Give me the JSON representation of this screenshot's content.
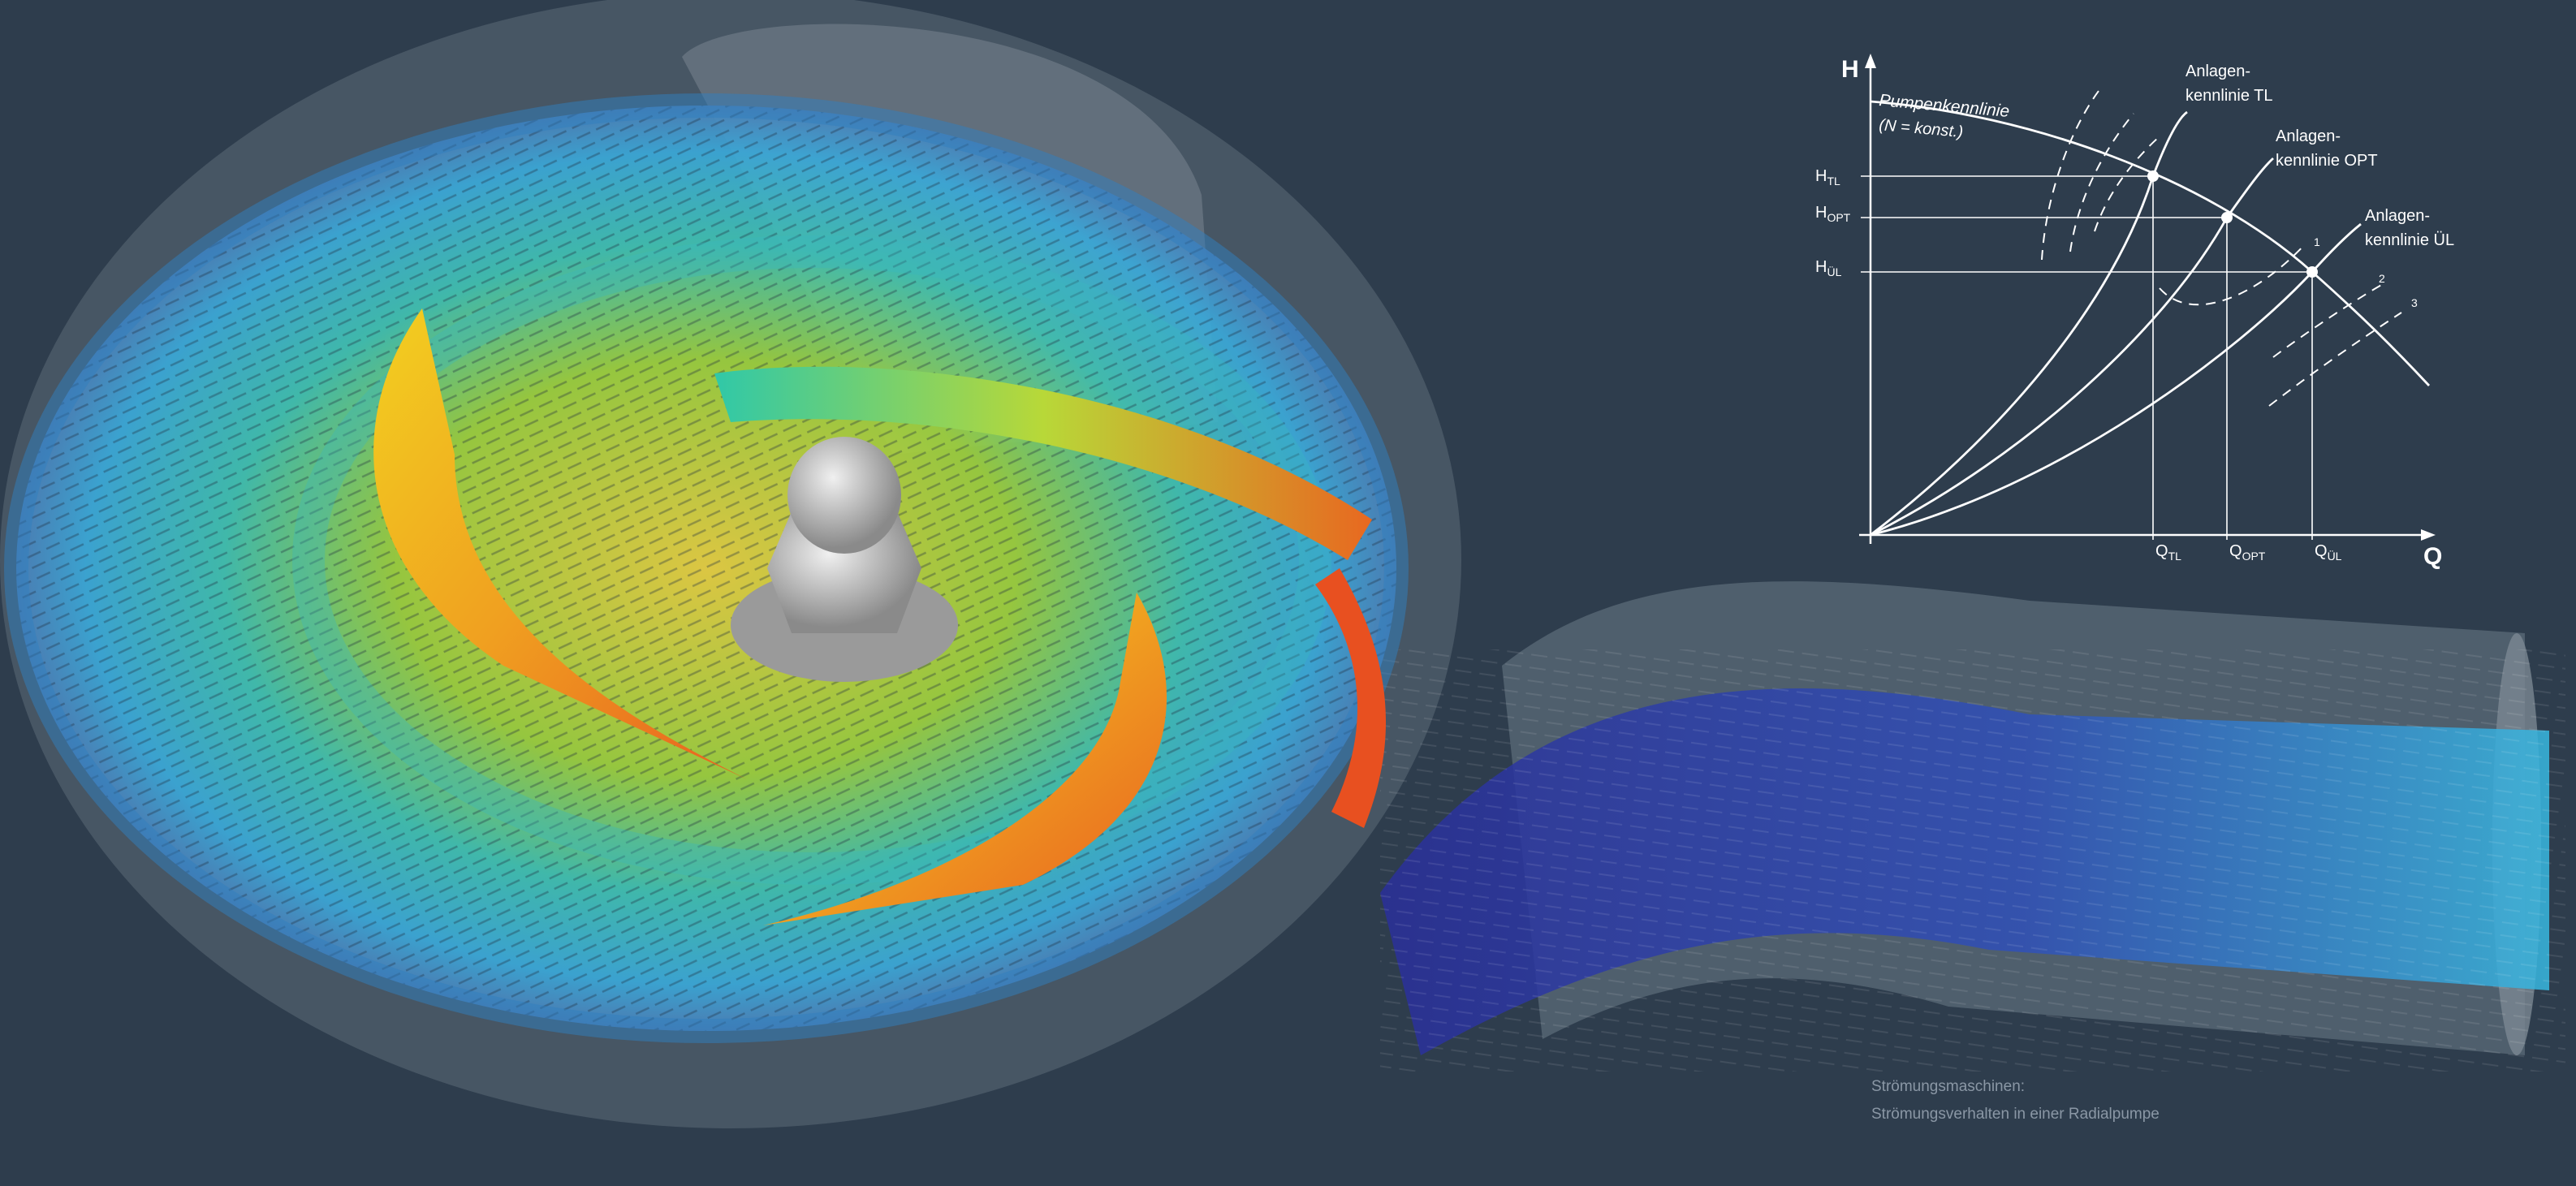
{
  "diagram": {
    "y_axis": "H",
    "x_axis": "Q",
    "pump_curve_label_1": "Pumpenkennlinie",
    "pump_curve_label_2": "(N = konst.)",
    "system_curves": [
      {
        "label_1": "Anlagen-",
        "label_2": "kennlinie TL"
      },
      {
        "label_1": "Anlagen-",
        "label_2": "kennlinie OPT"
      },
      {
        "label_1": "Anlagen-",
        "label_2": "kennlinie ÜL"
      }
    ],
    "h_labels": [
      {
        "main": "H",
        "sub": "TL"
      },
      {
        "main": "H",
        "sub": "OPT"
      },
      {
        "main": "H",
        "sub": "ÜL"
      }
    ],
    "q_labels": [
      {
        "main": "Q",
        "sub": "TL"
      },
      {
        "main": "Q",
        "sub": "OPT"
      },
      {
        "main": "Q",
        "sub": "ÜL"
      }
    ],
    "efficiency_labels": [
      "1",
      "2",
      "3"
    ]
  },
  "caption": {
    "line1": "Strömungsmaschinen:",
    "line2": "Strömungsverhalten in einer Radialpumpe"
  },
  "colors": {
    "background": "#2e3d4d",
    "flow_slow": "#2a2f9a",
    "flow_medium": "#35b8c8",
    "flow_fast": "#f0c020",
    "flow_max": "#e04020"
  }
}
